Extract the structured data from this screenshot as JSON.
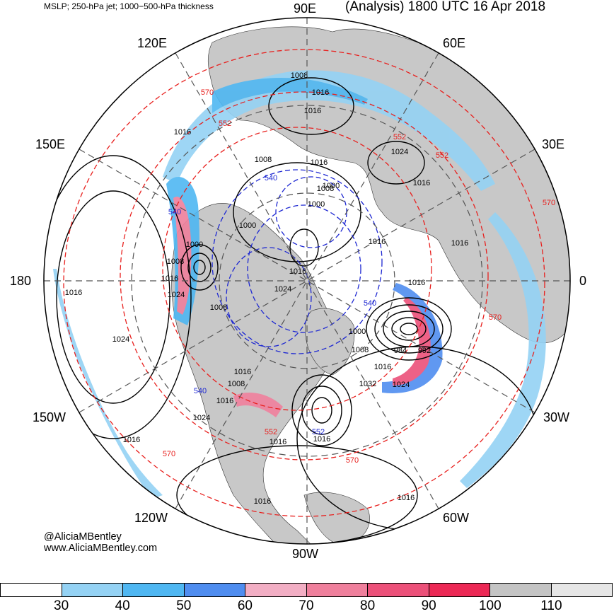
{
  "header": {
    "left_title": "MSLP; 250-hPa jet; 1000−500-hPa thickness",
    "right_title": "(Analysis) 1800 UTC 16 Apr 2018"
  },
  "longitude_labels": [
    "90E",
    "60E",
    "30E",
    "0",
    "30W",
    "60W",
    "90W",
    "120W",
    "150W",
    "180",
    "150E",
    "120E"
  ],
  "credits": {
    "handle": "@AliciaMBentley",
    "website": "www.AliciaMBentley.com"
  },
  "colorbar": {
    "colors": [
      "#ffffff",
      "#94d2f4",
      "#4fb7f2",
      "#4f8df0",
      "#f2aec4",
      "#ef7f9c",
      "#ec5079",
      "#ec2855",
      "#c4c4c4",
      "#e6e6e6"
    ],
    "labels": [
      "30",
      "40",
      "50",
      "60",
      "70",
      "80",
      "90",
      "100",
      "110"
    ]
  },
  "map_colors": {
    "land": "#c8c8c8",
    "ocean": "#ffffff",
    "mslp_contour": "#000000",
    "thickness_warm": "#e8201e",
    "thickness_cold": "#1e28d2",
    "graticule": "#555555"
  },
  "mslp_labels": [
    "1008",
    "1016",
    "1016",
    "1016",
    "1008",
    "1016",
    "1000",
    "1008",
    "1000",
    "1000",
    "1000",
    "1024",
    "1016",
    "1016",
    "1024",
    "1016",
    "1008",
    "1024",
    "1016",
    "1008",
    "1016",
    "1024",
    "1016",
    "1032",
    "1024",
    "984",
    "992",
    "1008",
    "1016",
    "1000",
    "1016",
    "1016",
    "1008",
    "1016",
    "1024",
    "1016",
    "1016",
    "1016",
    "1016",
    "1016"
  ],
  "thickness_labels": [
    "570",
    "552",
    "540",
    "552",
    "540",
    "540",
    "552",
    "570",
    "570",
    "552",
    "570",
    "552",
    "540",
    "570"
  ]
}
